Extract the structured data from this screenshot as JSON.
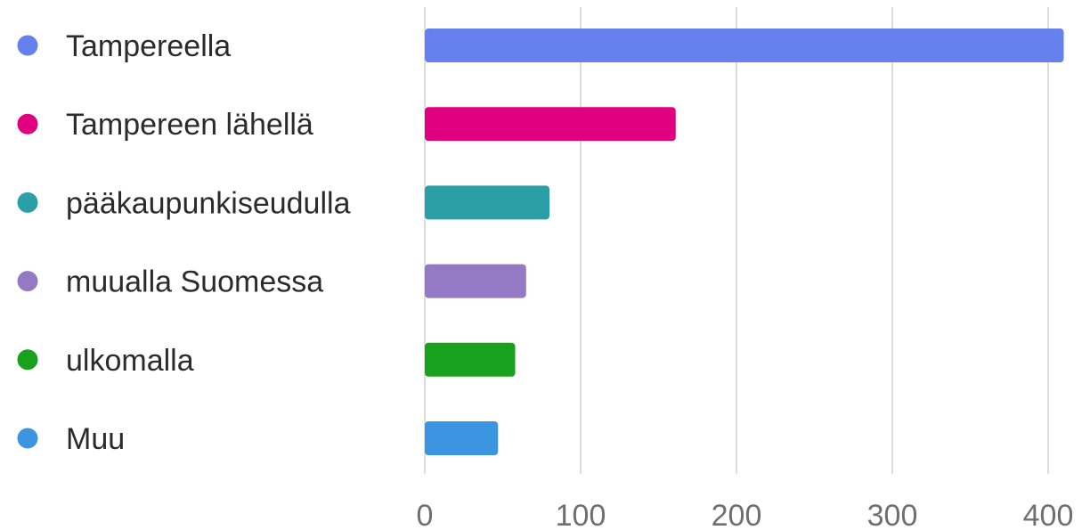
{
  "chart_data": {
    "type": "bar",
    "orientation": "horizontal",
    "title": "",
    "xlabel": "",
    "ylabel": "",
    "categories": [
      "Tampereella",
      "Tampereen lähellä",
      "pääkaupunkiseudulla",
      "muualla Suomessa",
      "ulkomalla",
      "Muu"
    ],
    "values": [
      410,
      161,
      80,
      65,
      58,
      47
    ],
    "colors": [
      "#6680ee",
      "#e0007f",
      "#2a9fa6",
      "#9479c4",
      "#17a11c",
      "#3b95e0"
    ],
    "xlim": [
      0,
      420
    ],
    "x_ticks": [
      "0",
      "100",
      "200",
      "300",
      "400"
    ],
    "grid": true,
    "legend_placement": "left"
  }
}
